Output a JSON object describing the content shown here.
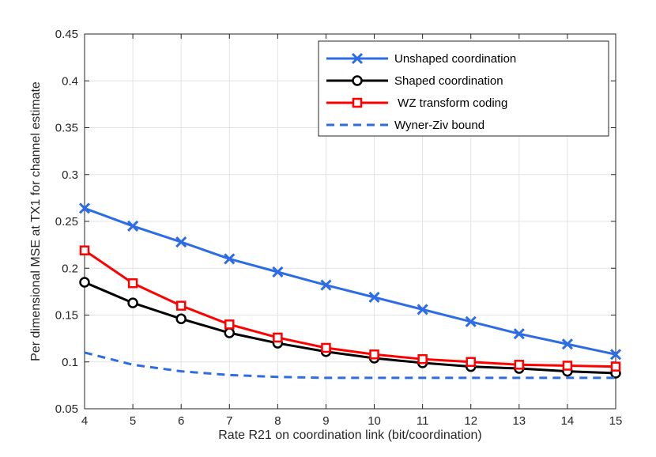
{
  "chart_data": {
    "type": "line",
    "title": "",
    "xlabel": "Rate R21 on coordination link (bit/coordination)",
    "ylabel": "Per dimensional MSE at TX1 for channel estimate",
    "xlim": [
      4,
      15
    ],
    "ylim": [
      0.05,
      0.45
    ],
    "xticks": [
      4,
      5,
      6,
      7,
      8,
      9,
      10,
      11,
      12,
      13,
      14,
      15
    ],
    "yticks": [
      0.05,
      0.1,
      0.15,
      0.2,
      0.25,
      0.3,
      0.35,
      0.4,
      0.45
    ],
    "ytick_labels": [
      "0.05",
      "0.1",
      "0.15",
      "0.2",
      "0.25",
      "0.3",
      "0.35",
      "0.4",
      "0.45"
    ],
    "grid": true,
    "legend_position": "top-right",
    "x": [
      4,
      5,
      6,
      7,
      8,
      9,
      10,
      11,
      12,
      13,
      14,
      15
    ],
    "series": [
      {
        "name": "Unshaped coordination",
        "color": "#2e6ce6",
        "marker": "x",
        "linestyle": "solid",
        "values": [
          0.264,
          0.245,
          0.228,
          0.21,
          0.196,
          0.182,
          0.169,
          0.156,
          0.143,
          0.13,
          0.119,
          0.108
        ]
      },
      {
        "name": "Shaped coordination",
        "color": "#000000",
        "marker": "o",
        "linestyle": "solid",
        "values": [
          0.185,
          0.163,
          0.146,
          0.131,
          0.12,
          0.111,
          0.104,
          0.099,
          0.095,
          0.093,
          0.09,
          0.088
        ]
      },
      {
        "name": " WZ transform coding",
        "color": "#ff0000",
        "marker": "s",
        "linestyle": "solid",
        "values": [
          0.219,
          0.184,
          0.16,
          0.14,
          0.126,
          0.115,
          0.108,
          0.103,
          0.1,
          0.097,
          0.096,
          0.095
        ]
      },
      {
        "name": "Wyner-Ziv bound",
        "color": "#2e6ce6",
        "marker": "none",
        "linestyle": "dashed",
        "values": [
          0.11,
          0.097,
          0.09,
          0.086,
          0.084,
          0.083,
          0.083,
          0.083,
          0.083,
          0.083,
          0.083,
          0.083
        ]
      }
    ]
  }
}
